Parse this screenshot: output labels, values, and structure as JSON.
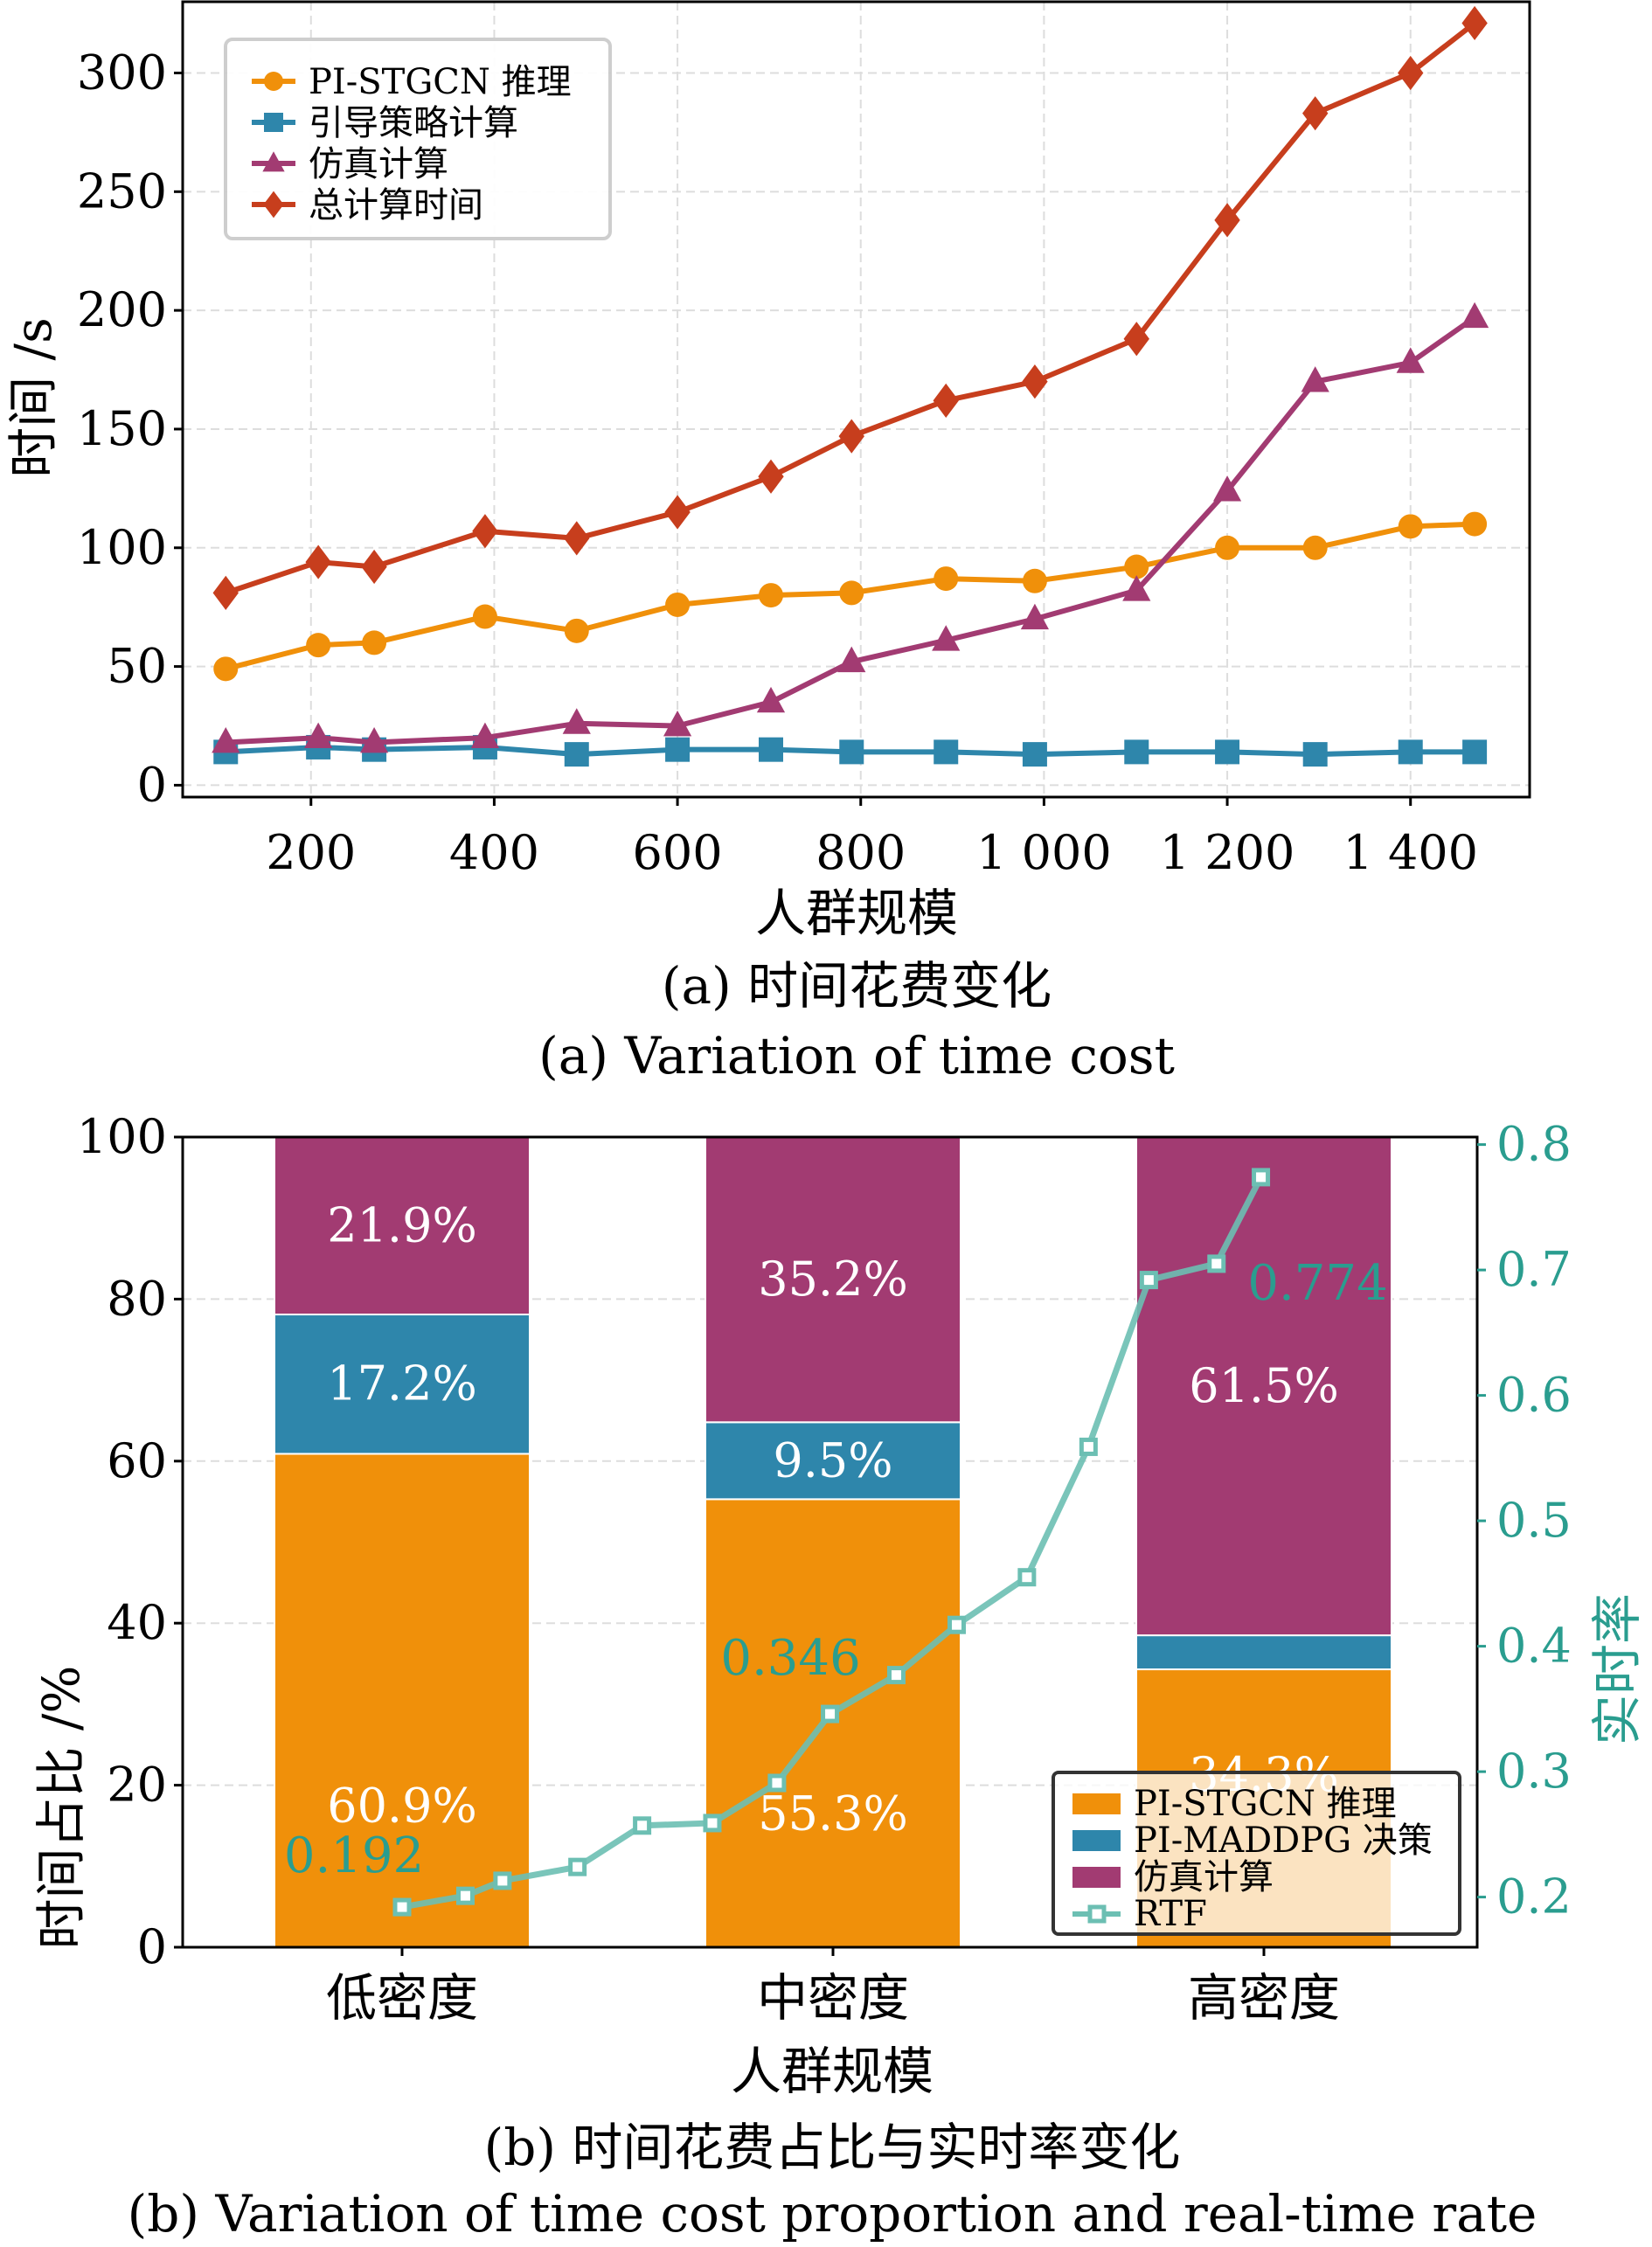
{
  "chart_data": [
    {
      "type": "line",
      "title": "(a) 时间花费变化",
      "subtitle": "(a) Variation of time cost",
      "xlabel": "人群规模",
      "ylabel": "时间 /s",
      "xlim": [
        60,
        1530
      ],
      "ylim": [
        -5,
        330
      ],
      "xticks": [
        200,
        400,
        600,
        800,
        1000,
        1200,
        1400
      ],
      "xtick_labels": [
        "200",
        "400",
        "600",
        "800",
        "1 000",
        "1 200",
        "1 400"
      ],
      "yticks": [
        0,
        50,
        100,
        150,
        200,
        250,
        300
      ],
      "ytick_labels": [
        "0",
        "50",
        "100",
        "150",
        "200",
        "250",
        "300"
      ],
      "grid": true,
      "legend_position": "top-left",
      "x": [
        107,
        208,
        269,
        390,
        490,
        600,
        702,
        790,
        893,
        990,
        1101,
        1200,
        1296,
        1400,
        1470
      ],
      "series": [
        {
          "name": "PI-STGCN 推理",
          "color": "#f0900a",
          "marker": "circle",
          "values": [
            49,
            59,
            60,
            71,
            65,
            76,
            80,
            81,
            87,
            86,
            92,
            100,
            100,
            109,
            110
          ]
        },
        {
          "name": "引导策略计算",
          "color": "#2e86ab",
          "marker": "square",
          "values": [
            14,
            16,
            15,
            16,
            13,
            15,
            15,
            14,
            14,
            13,
            14,
            14,
            13,
            14,
            14
          ]
        },
        {
          "name": "仿真计算",
          "color": "#a23b72",
          "marker": "triangle",
          "values": [
            18,
            20,
            18,
            20,
            26,
            25,
            35,
            52,
            61,
            70,
            82,
            124,
            170,
            178,
            197
          ]
        },
        {
          "name": "总计算时间",
          "color": "#c73e1d",
          "marker": "diamond",
          "values": [
            81,
            94,
            92,
            107,
            104,
            115,
            130,
            147,
            162,
            170,
            188,
            238,
            283,
            300,
            321
          ]
        }
      ]
    },
    {
      "type": "bar",
      "stacked": true,
      "title": "(b) 时间花费占比与实时率变化",
      "subtitle": "(b) Variation of time cost proportion and real-time rate",
      "xlabel": "人群规模",
      "ylabel": "时间占比 /%",
      "ylabel_right": "实时率",
      "categories": [
        "低密度",
        "中密度",
        "高密度"
      ],
      "ylim": [
        0,
        100
      ],
      "yticks": [
        0,
        20,
        40,
        60,
        80,
        100
      ],
      "ytick_labels": [
        "0",
        "20",
        "40",
        "60",
        "80",
        "100"
      ],
      "ylim_right": [
        0.16,
        0.806
      ],
      "yticks_right": [
        0.2,
        0.3,
        0.4,
        0.5,
        0.6,
        0.7,
        0.8
      ],
      "ytick_labels_right": [
        "0.2",
        "0.3",
        "0.4",
        "0.5",
        "0.6",
        "0.7",
        "0.8"
      ],
      "grid": true,
      "legend_position": "bottom-right",
      "series": [
        {
          "name": "PI-STGCN 推理",
          "color": "#f0900a",
          "values": [
            60.9,
            55.3,
            34.3
          ],
          "labels": [
            "60.9%",
            "55.3%",
            "34.3%"
          ]
        },
        {
          "name": "PI-MADDPG 决策",
          "color": "#2e86ab",
          "values": [
            17.2,
            9.5,
            4.2
          ],
          "labels": [
            "17.2%",
            "9.5%",
            ""
          ]
        },
        {
          "name": "仿真计算",
          "color": "#a23b72",
          "values": [
            21.9,
            35.2,
            61.5
          ],
          "labels": [
            "21.9%",
            "35.2%",
            "61.5%"
          ]
        }
      ],
      "line_series": {
        "name": "RTF",
        "color": "#6cbfb3",
        "marker": "square-open",
        "x": [
          0,
          0.147,
          0.233,
          0.407,
          0.557,
          0.72,
          0.87,
          0.993,
          1.147,
          1.287,
          1.45,
          1.593,
          1.733,
          1.89,
          1.993
        ],
        "values": [
          0.192,
          0.201,
          0.213,
          0.224,
          0.257,
          0.259,
          0.291,
          0.346,
          0.377,
          0.417,
          0.455,
          0.559,
          0.692,
          0.705,
          0.774
        ],
        "annotations": [
          {
            "index": 0,
            "text": "0.192"
          },
          {
            "index": 7,
            "text": "0.346"
          },
          {
            "index": 14,
            "text": "0.774"
          }
        ]
      }
    }
  ]
}
